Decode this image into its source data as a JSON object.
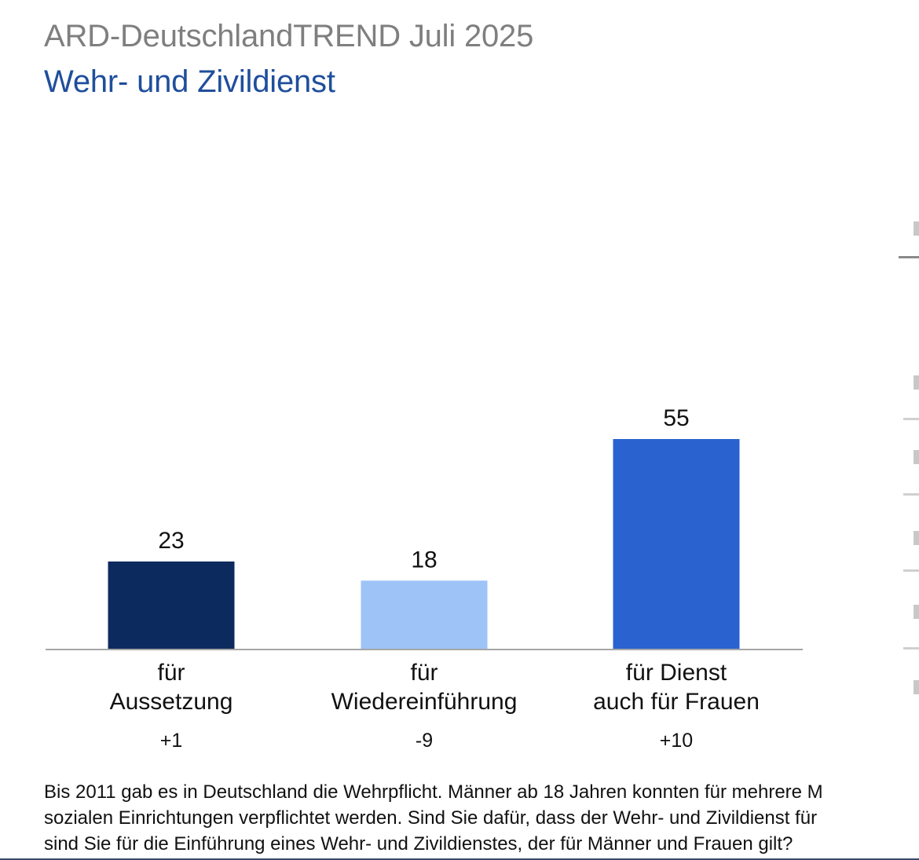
{
  "header": {
    "title": "ARD-DeutschlandTREND Juli 2025",
    "subtitle": "Wehr- und Zivildienst"
  },
  "chart_data": {
    "type": "bar",
    "title": "",
    "xlabel": "",
    "ylabel": "",
    "ylim": [
      0,
      75
    ],
    "categories": [
      [
        "für",
        "Aussetzung"
      ],
      [
        "für",
        "Wiedereinführung"
      ],
      [
        "für Dienst",
        "auch für Frauen"
      ]
    ],
    "values": [
      23,
      18,
      55
    ],
    "changes": [
      "+1",
      "-9",
      "+10"
    ],
    "colors": [
      "#0d2a5e",
      "#9ec3f7",
      "#2a62cf"
    ],
    "grid": false,
    "legend": "none"
  },
  "question": [
    "Bis 2011 gab es in Deutschland die Wehrpflicht. Männer ab 18 Jahren konnten für mehrere M",
    "sozialen Einrichtungen verpflichtet werden. Sind Sie dafür, dass der Wehr- und Zivildienst für",
    "sind Sie für die Einführung eines Wehr- und Zivildienstes, der für Männer und Frauen gilt?"
  ]
}
